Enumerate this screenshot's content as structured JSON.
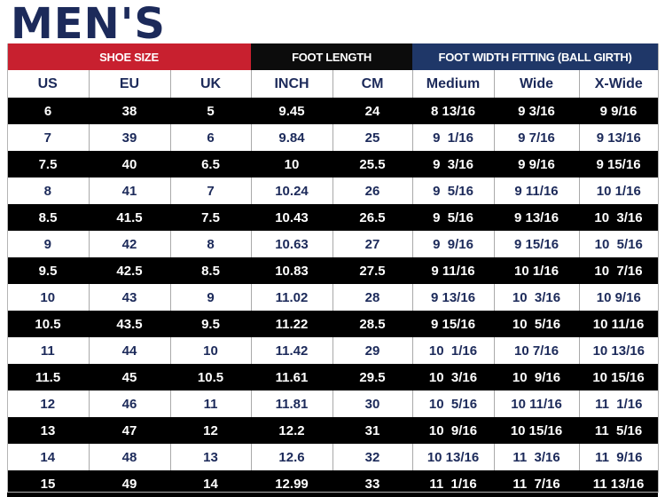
{
  "title": "MEN'S",
  "groups": {
    "shoe_size": "SHOE SIZE",
    "foot_length": "FOOT LENGTH",
    "foot_width": "FOOT WIDTH FITTING (BALL GIRTH)"
  },
  "columns": [
    "US",
    "EU",
    "UK",
    "INCH",
    "CM",
    "Medium",
    "Wide",
    "X-Wide"
  ],
  "rows": [
    [
      "6",
      "38",
      "5",
      "9.45",
      "24",
      "8 13/16",
      "9 3/16",
      "9 9/16"
    ],
    [
      "7",
      "39",
      "6",
      "9.84",
      "25",
      "9  1/16",
      "9 7/16",
      "9 13/16"
    ],
    [
      "7.5",
      "40",
      "6.5",
      "10",
      "25.5",
      "9  3/16",
      "9 9/16",
      "9 15/16"
    ],
    [
      "8",
      "41",
      "7",
      "10.24",
      "26",
      "9  5/16",
      "9 11/16",
      "10 1/16"
    ],
    [
      "8.5",
      "41.5",
      "7.5",
      "10.43",
      "26.5",
      "9  5/16",
      "9 13/16",
      "10  3/16"
    ],
    [
      "9",
      "42",
      "8",
      "10.63",
      "27",
      "9  9/16",
      "9 15/16",
      "10  5/16"
    ],
    [
      "9.5",
      "42.5",
      "8.5",
      "10.83",
      "27.5",
      "9 11/16",
      "10 1/16",
      "10  7/16"
    ],
    [
      "10",
      "43",
      "9",
      "11.02",
      "28",
      "9 13/16",
      "10  3/16",
      "10 9/16"
    ],
    [
      "10.5",
      "43.5",
      "9.5",
      "11.22",
      "28.5",
      "9 15/16",
      "10  5/16",
      "10 11/16"
    ],
    [
      "11",
      "44",
      "10",
      "11.42",
      "29",
      "10  1/16",
      "10 7/16",
      "10 13/16"
    ],
    [
      "11.5",
      "45",
      "10.5",
      "11.61",
      "29.5",
      "10  3/16",
      "10  9/16",
      "10 15/16"
    ],
    [
      "12",
      "46",
      "11",
      "11.81",
      "30",
      "10  5/16",
      "10 11/16",
      "11  1/16"
    ],
    [
      "13",
      "47",
      "12",
      "12.2",
      "31",
      "10  9/16",
      "10 15/16",
      "11  5/16"
    ],
    [
      "14",
      "48",
      "13",
      "12.6",
      "32",
      "10 13/16",
      "11  3/16",
      "11  9/16"
    ],
    [
      "15",
      "49",
      "14",
      "12.99",
      "33",
      "11  1/16",
      "11  7/16",
      "11 13/16"
    ]
  ]
}
